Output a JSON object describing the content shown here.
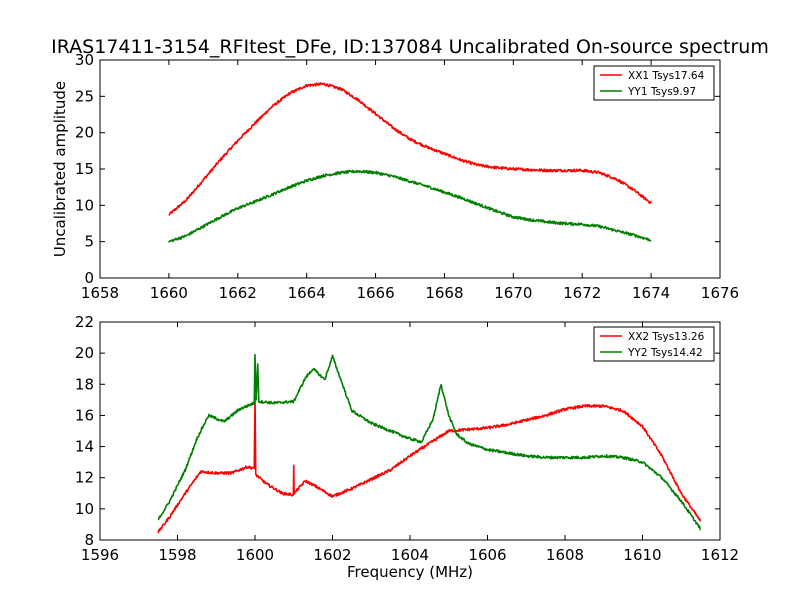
{
  "title": "IRAS17411-3154_RFItest_DFe, ID:137084 Uncalibrated On-source spectrum",
  "colors": {
    "red": "#ff0000",
    "green": "#008000"
  },
  "chart_data": [
    {
      "type": "line",
      "ylabel": "Uncalibrated amplitude",
      "xlabel": "",
      "xlim": [
        1658,
        1676
      ],
      "ylim": [
        0,
        30
      ],
      "xticks": [
        1658,
        1660,
        1662,
        1664,
        1666,
        1668,
        1670,
        1672,
        1674,
        1676
      ],
      "yticks": [
        0,
        5,
        10,
        15,
        20,
        25,
        30
      ],
      "legend_position": "top-right",
      "series": [
        {
          "name": "XX1 Tsys17.64",
          "color": "#ff0000",
          "x": [
            1660.0,
            1660.5,
            1661.0,
            1661.5,
            1662.0,
            1662.5,
            1663.0,
            1663.5,
            1664.0,
            1664.5,
            1665.0,
            1665.5,
            1666.0,
            1666.5,
            1667.0,
            1667.5,
            1668.0,
            1668.5,
            1669.0,
            1669.5,
            1670.0,
            1670.5,
            1671.0,
            1671.5,
            1672.0,
            1672.5,
            1673.0,
            1673.5,
            1674.0
          ],
          "y": [
            8.7,
            10.7,
            13.5,
            16.3,
            18.9,
            21.3,
            23.6,
            25.4,
            26.5,
            26.7,
            26.0,
            24.5,
            22.6,
            20.7,
            19.1,
            18.0,
            17.1,
            16.2,
            15.5,
            15.2,
            15.0,
            14.9,
            14.8,
            14.8,
            14.8,
            14.5,
            13.6,
            12.1,
            10.3
          ]
        },
        {
          "name": "YY1 Tsys9.97",
          "color": "#008000",
          "x": [
            1660.0,
            1660.5,
            1661.0,
            1661.5,
            1662.0,
            1662.5,
            1663.0,
            1663.5,
            1664.0,
            1664.5,
            1665.0,
            1665.5,
            1666.0,
            1666.5,
            1667.0,
            1667.5,
            1668.0,
            1668.5,
            1669.0,
            1669.5,
            1670.0,
            1670.5,
            1671.0,
            1671.5,
            1672.0,
            1672.5,
            1673.0,
            1673.5,
            1674.0
          ],
          "y": [
            5.0,
            5.8,
            7.1,
            8.4,
            9.6,
            10.5,
            11.5,
            12.5,
            13.4,
            14.1,
            14.5,
            14.7,
            14.5,
            14.0,
            13.3,
            12.6,
            11.8,
            11.0,
            10.1,
            9.2,
            8.4,
            8.0,
            7.7,
            7.5,
            7.4,
            7.1,
            6.5,
            5.9,
            5.2
          ]
        }
      ]
    },
    {
      "type": "line",
      "ylabel": "",
      "xlabel": "Frequency (MHz)",
      "xlim": [
        1596,
        1612
      ],
      "ylim": [
        8,
        22
      ],
      "xticks": [
        1596,
        1598,
        1600,
        1602,
        1604,
        1606,
        1608,
        1610,
        1612
      ],
      "yticks": [
        8,
        10,
        12,
        14,
        16,
        18,
        20,
        22
      ],
      "legend_position": "top-right",
      "series": [
        {
          "name": "XX2 Tsys13.26",
          "color": "#ff0000",
          "x": [
            1597.5,
            1597.8,
            1598.2,
            1598.6,
            1599.0,
            1599.4,
            1599.8,
            1599.98,
            1600.0,
            1600.02,
            1600.3,
            1600.7,
            1600.99,
            1601.0,
            1601.01,
            1601.3,
            1601.6,
            1602.0,
            1602.5,
            1603.0,
            1603.5,
            1604.0,
            1604.5,
            1605.0,
            1605.5,
            1606.0,
            1606.5,
            1607.0,
            1607.5,
            1608.0,
            1608.5,
            1609.0,
            1609.5,
            1610.0,
            1610.5,
            1611.0,
            1611.5
          ],
          "y": [
            8.5,
            9.5,
            11.0,
            12.4,
            12.3,
            12.3,
            12.7,
            12.6,
            17.2,
            12.2,
            11.6,
            11.0,
            10.9,
            12.8,
            11.0,
            11.8,
            11.4,
            10.8,
            11.3,
            11.9,
            12.5,
            13.4,
            14.2,
            15.0,
            15.1,
            15.2,
            15.4,
            15.7,
            16.0,
            16.4,
            16.6,
            16.6,
            16.3,
            15.3,
            13.4,
            11.0,
            9.2
          ]
        },
        {
          "name": "YY2 Tsys14.42",
          "color": "#008000",
          "x": [
            1597.5,
            1597.8,
            1598.2,
            1598.5,
            1598.8,
            1599.2,
            1599.6,
            1599.98,
            1600.0,
            1600.03,
            1600.07,
            1600.1,
            1600.5,
            1601.0,
            1601.3,
            1601.5,
            1601.8,
            1602.0,
            1602.2,
            1602.5,
            1603.0,
            1603.5,
            1604.0,
            1604.3,
            1604.6,
            1604.8,
            1605.0,
            1605.2,
            1605.5,
            1606.0,
            1606.5,
            1607.0,
            1607.5,
            1608.0,
            1608.5,
            1609.0,
            1609.5,
            1610.0,
            1610.5,
            1611.0,
            1611.5
          ],
          "y": [
            9.3,
            10.5,
            12.5,
            14.5,
            16.0,
            15.6,
            16.4,
            16.8,
            19.9,
            17.0,
            19.3,
            16.9,
            16.8,
            16.9,
            18.4,
            19.0,
            18.3,
            19.8,
            18.4,
            16.3,
            15.5,
            15.0,
            14.5,
            14.3,
            15.8,
            18.0,
            16.0,
            14.8,
            14.2,
            13.8,
            13.6,
            13.4,
            13.3,
            13.3,
            13.3,
            13.4,
            13.3,
            13.0,
            12.0,
            10.5,
            8.7
          ]
        }
      ]
    }
  ]
}
